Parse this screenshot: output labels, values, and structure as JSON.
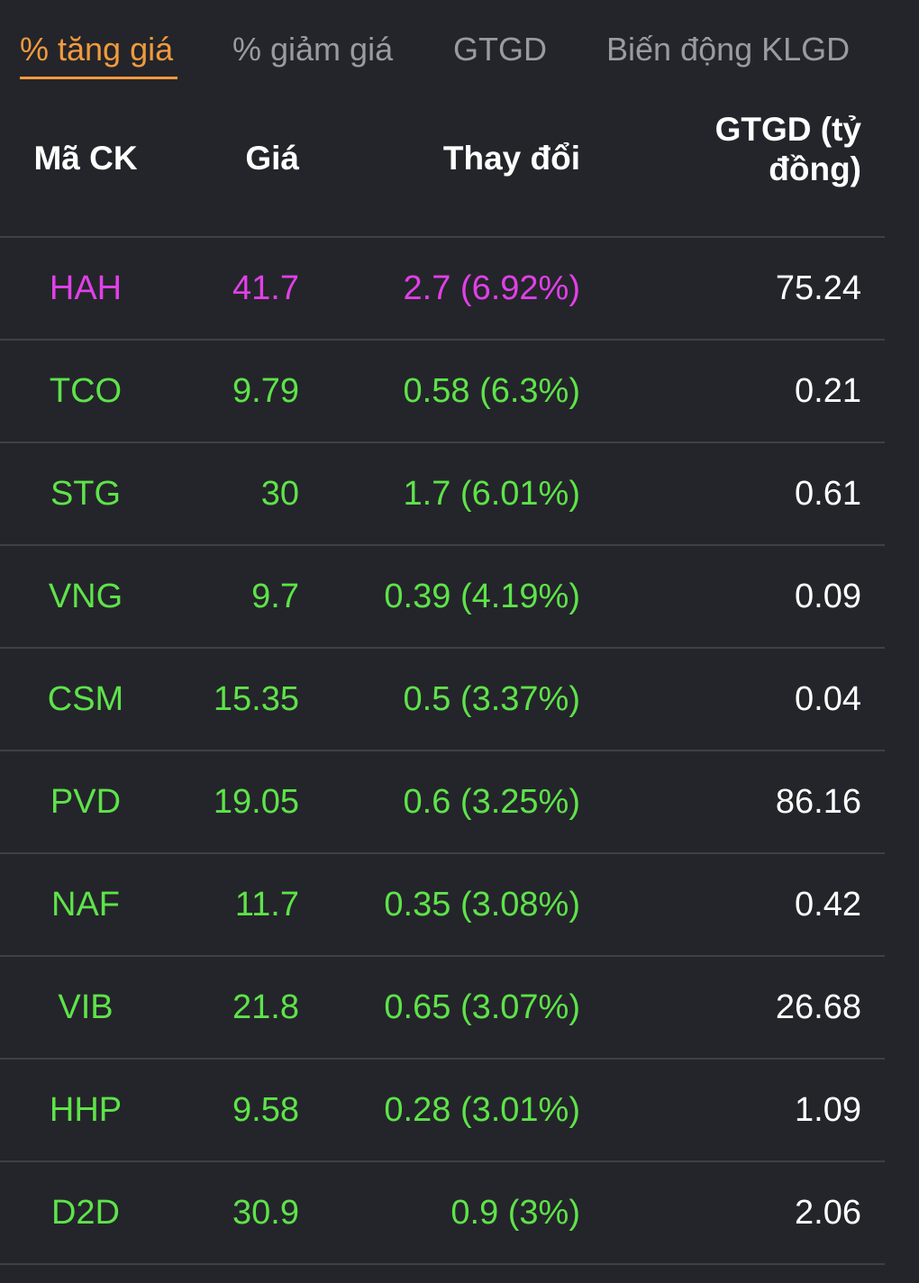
{
  "colors": {
    "background": "#24252a",
    "tab_active": "#f19a3e",
    "tab_inactive": "#9a9ba1",
    "ceiling": "#e040e8",
    "up": "#5ee34a",
    "divider": "#3f4046",
    "header_text": "#ffffff",
    "value_text": "#ffffff"
  },
  "tabs": [
    {
      "label": "% tăng giá",
      "active": true
    },
    {
      "label": "% giảm giá",
      "active": false
    },
    {
      "label": "GTGD",
      "active": false
    },
    {
      "label": "Biến động KLGD",
      "active": false
    }
  ],
  "table": {
    "headers": {
      "code": "Mã CK",
      "price": "Giá",
      "change": "Thay đổi",
      "value_line1": "GTGD (tỷ",
      "value_line2": "đồng)"
    },
    "rows": [
      {
        "code": "HAH",
        "price": "41.7",
        "change": "2.7 (6.92%)",
        "value": "75.24",
        "status": "ceiling"
      },
      {
        "code": "TCO",
        "price": "9.79",
        "change": "0.58 (6.3%)",
        "value": "0.21",
        "status": "up"
      },
      {
        "code": "STG",
        "price": "30",
        "change": "1.7 (6.01%)",
        "value": "0.61",
        "status": "up"
      },
      {
        "code": "VNG",
        "price": "9.7",
        "change": "0.39 (4.19%)",
        "value": "0.09",
        "status": "up"
      },
      {
        "code": "CSM",
        "price": "15.35",
        "change": "0.5 (3.37%)",
        "value": "0.04",
        "status": "up"
      },
      {
        "code": "PVD",
        "price": "19.05",
        "change": "0.6 (3.25%)",
        "value": "86.16",
        "status": "up"
      },
      {
        "code": "NAF",
        "price": "11.7",
        "change": "0.35 (3.08%)",
        "value": "0.42",
        "status": "up"
      },
      {
        "code": "VIB",
        "price": "21.8",
        "change": "0.65 (3.07%)",
        "value": "26.68",
        "status": "up"
      },
      {
        "code": "HHP",
        "price": "9.58",
        "change": "0.28 (3.01%)",
        "value": "1.09",
        "status": "up"
      },
      {
        "code": "D2D",
        "price": "30.9",
        "change": "0.9 (3%)",
        "value": "2.06",
        "status": "up"
      }
    ]
  }
}
